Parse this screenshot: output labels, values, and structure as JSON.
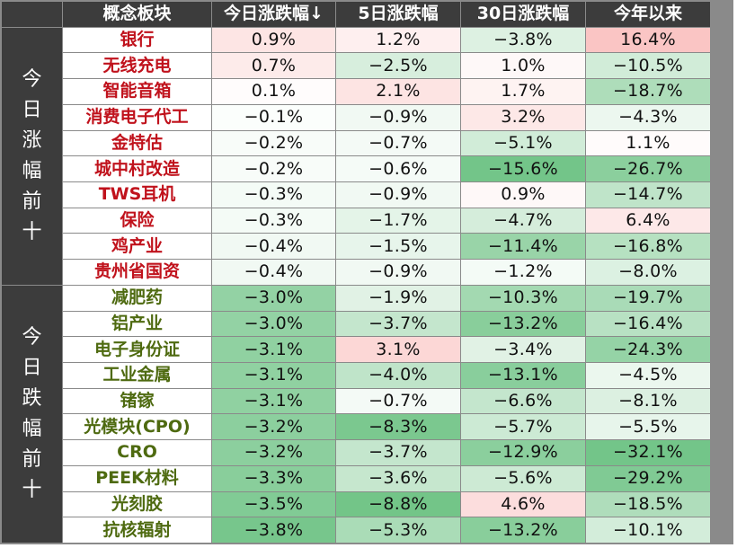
{
  "header": {
    "corner": "",
    "name": "概念板块",
    "today": "今日涨跌幅↓",
    "d5": "5日涨跌幅",
    "d30": "30日涨跌幅",
    "ytd": "今年以来"
  },
  "groups": [
    {
      "label": "今日涨幅前十",
      "chars": [
        "今",
        "日",
        "涨",
        "幅",
        "前",
        "十"
      ],
      "direction": "up",
      "name_color": "#c0121c"
    },
    {
      "label": "今日跌幅前十",
      "chars": [
        "今",
        "日",
        "跌",
        "幅",
        "前",
        "十"
      ],
      "direction": "down",
      "name_color": "#4e6a10"
    }
  ],
  "columns": [
    "今日涨跌幅↓",
    "5日涨跌幅",
    "30日涨跌幅",
    "今年以来"
  ],
  "rows": [
    {
      "name": "银行",
      "group": 0,
      "today": "0.9%",
      "d5": "1.2%",
      "d30": "−3.8%",
      "ytd": "16.4%",
      "v": [
        0.9,
        1.2,
        -3.8,
        16.4
      ]
    },
    {
      "name": "无线充电",
      "group": 0,
      "today": "0.7%",
      "d5": "−2.5%",
      "d30": "1.0%",
      "ytd": "−10.5%",
      "v": [
        0.7,
        -2.5,
        1.0,
        -10.5
      ]
    },
    {
      "name": "智能音箱",
      "group": 0,
      "today": "0.1%",
      "d5": "2.1%",
      "d30": "1.7%",
      "ytd": "−18.7%",
      "v": [
        0.1,
        2.1,
        1.7,
        -18.7
      ]
    },
    {
      "name": "消费电子代工",
      "group": 0,
      "today": "−0.1%",
      "d5": "−0.9%",
      "d30": "3.2%",
      "ytd": "−4.3%",
      "v": [
        -0.1,
        -0.9,
        3.2,
        -4.3
      ]
    },
    {
      "name": "金特估",
      "group": 0,
      "today": "−0.2%",
      "d5": "−0.7%",
      "d30": "−5.1%",
      "ytd": "1.1%",
      "v": [
        -0.2,
        -0.7,
        -5.1,
        1.1
      ]
    },
    {
      "name": "城中村改造",
      "group": 0,
      "today": "−0.2%",
      "d5": "−0.6%",
      "d30": "−15.6%",
      "ytd": "−26.7%",
      "v": [
        -0.2,
        -0.6,
        -15.6,
        -26.7
      ]
    },
    {
      "name": "TWS耳机",
      "group": 0,
      "today": "−0.3%",
      "d5": "−0.9%",
      "d30": "0.9%",
      "ytd": "−14.7%",
      "v": [
        -0.3,
        -0.9,
        0.9,
        -14.7
      ]
    },
    {
      "name": "保险",
      "group": 0,
      "today": "−0.3%",
      "d5": "−1.7%",
      "d30": "−4.7%",
      "ytd": "6.4%",
      "v": [
        -0.3,
        -1.7,
        -4.7,
        6.4
      ]
    },
    {
      "name": "鸡产业",
      "group": 0,
      "today": "−0.4%",
      "d5": "−1.5%",
      "d30": "−11.4%",
      "ytd": "−16.8%",
      "v": [
        -0.4,
        -1.5,
        -11.4,
        -16.8
      ]
    },
    {
      "name": "贵州省国资",
      "group": 0,
      "today": "−0.4%",
      "d5": "−0.9%",
      "d30": "−1.2%",
      "ytd": "−8.0%",
      "v": [
        -0.4,
        -0.9,
        -1.2,
        -8.0
      ]
    },
    {
      "name": "减肥药",
      "group": 1,
      "today": "−3.0%",
      "d5": "−1.9%",
      "d30": "−10.3%",
      "ytd": "−19.7%",
      "v": [
        -3.0,
        -1.9,
        -10.3,
        -19.7
      ]
    },
    {
      "name": "铝产业",
      "group": 1,
      "today": "−3.0%",
      "d5": "−3.7%",
      "d30": "−13.2%",
      "ytd": "−16.4%",
      "v": [
        -3.0,
        -3.7,
        -13.2,
        -16.4
      ]
    },
    {
      "name": "电子身份证",
      "group": 1,
      "today": "−3.1%",
      "d5": "3.1%",
      "d30": "−3.4%",
      "ytd": "−24.3%",
      "v": [
        -3.1,
        3.1,
        -3.4,
        -24.3
      ]
    },
    {
      "name": "工业金属",
      "group": 1,
      "today": "−3.1%",
      "d5": "−4.0%",
      "d30": "−13.1%",
      "ytd": "−4.5%",
      "v": [
        -3.1,
        -4.0,
        -13.1,
        -4.5
      ]
    },
    {
      "name": "锗镓",
      "group": 1,
      "today": "−3.1%",
      "d5": "−0.7%",
      "d30": "−6.6%",
      "ytd": "−8.1%",
      "v": [
        -3.1,
        -0.7,
        -6.6,
        -8.1
      ]
    },
    {
      "name": "光模块(CPO)",
      "group": 1,
      "today": "−3.2%",
      "d5": "−8.3%",
      "d30": "−5.7%",
      "ytd": "−5.5%",
      "v": [
        -3.2,
        -8.3,
        -5.7,
        -5.5
      ]
    },
    {
      "name": "CRO",
      "group": 1,
      "today": "−3.2%",
      "d5": "−3.7%",
      "d30": "−12.9%",
      "ytd": "−32.1%",
      "v": [
        -3.2,
        -3.7,
        -12.9,
        -32.1
      ]
    },
    {
      "name": "PEEK材料",
      "group": 1,
      "today": "−3.3%",
      "d5": "−3.6%",
      "d30": "−5.6%",
      "ytd": "−29.2%",
      "v": [
        -3.3,
        -3.6,
        -5.6,
        -29.2
      ]
    },
    {
      "name": "光刻胶",
      "group": 1,
      "today": "−3.5%",
      "d5": "−8.8%",
      "d30": "4.6%",
      "ytd": "−18.5%",
      "v": [
        -3.5,
        -8.8,
        4.6,
        -18.5
      ]
    },
    {
      "name": "抗核辐射",
      "group": 1,
      "today": "−3.8%",
      "d5": "−5.3%",
      "d30": "−13.2%",
      "ytd": "−10.1%",
      "v": [
        -3.8,
        -5.3,
        -13.2,
        -10.1
      ]
    }
  ],
  "colors": {
    "header_bg": "#3c3c3c",
    "header_text": "#ffffff",
    "grid_line": "#8a8a8a",
    "positive_scale": "#f4807d",
    "negative_scale": "#63be7b",
    "neutral": "#ffffff"
  },
  "scale_max": {
    "today": 4.0,
    "d5": 9.0,
    "d30": 16.0,
    "ytd": 33.0
  }
}
